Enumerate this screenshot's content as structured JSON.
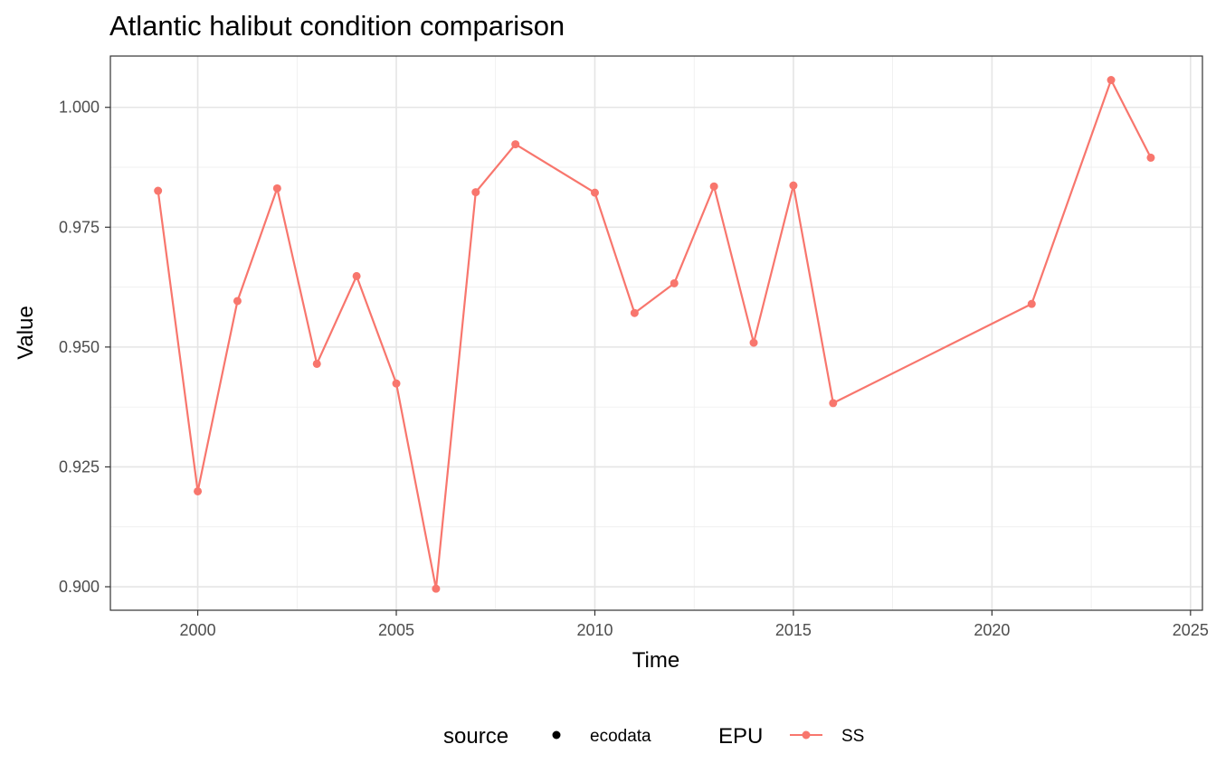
{
  "chart_data": {
    "type": "line",
    "title": "Atlantic halibut condition comparison",
    "xlabel": "Time",
    "ylabel": "Value",
    "xlim": [
      1997.8,
      2025.3
    ],
    "ylim": [
      0.8951,
      1.0107
    ],
    "x_ticks": [
      2000,
      2005,
      2010,
      2015,
      2020,
      2025
    ],
    "x_tick_labels": [
      "2000",
      "2005",
      "2010",
      "2015",
      "2020",
      "2025"
    ],
    "y_ticks": [
      0.9,
      0.925,
      0.95,
      0.975,
      1.0
    ],
    "y_tick_labels": [
      "0.900",
      "0.925",
      "0.950",
      "0.975",
      "1.000"
    ],
    "grid": true,
    "legend_position": "bottom",
    "series": [
      {
        "name": "SS",
        "color": "#F8766D",
        "x": [
          1999,
          2000,
          2001,
          2002,
          2003,
          2004,
          2005,
          2006,
          2007,
          2008,
          2010,
          2011,
          2012,
          2013,
          2014,
          2015,
          2016,
          2021,
          2023,
          2024
        ],
        "values": [
          0.9826,
          0.9199,
          0.9596,
          0.9831,
          0.9465,
          0.9648,
          0.9424,
          0.8996,
          0.9823,
          0.9923,
          0.9822,
          0.9571,
          0.9633,
          0.9835,
          0.9509,
          0.9837,
          0.9383,
          0.959,
          1.0057,
          0.9895
        ]
      }
    ],
    "legend": {
      "source_title": "source",
      "source_label": "ecodata",
      "epu_title": "EPU",
      "epu_label": "SS"
    }
  }
}
